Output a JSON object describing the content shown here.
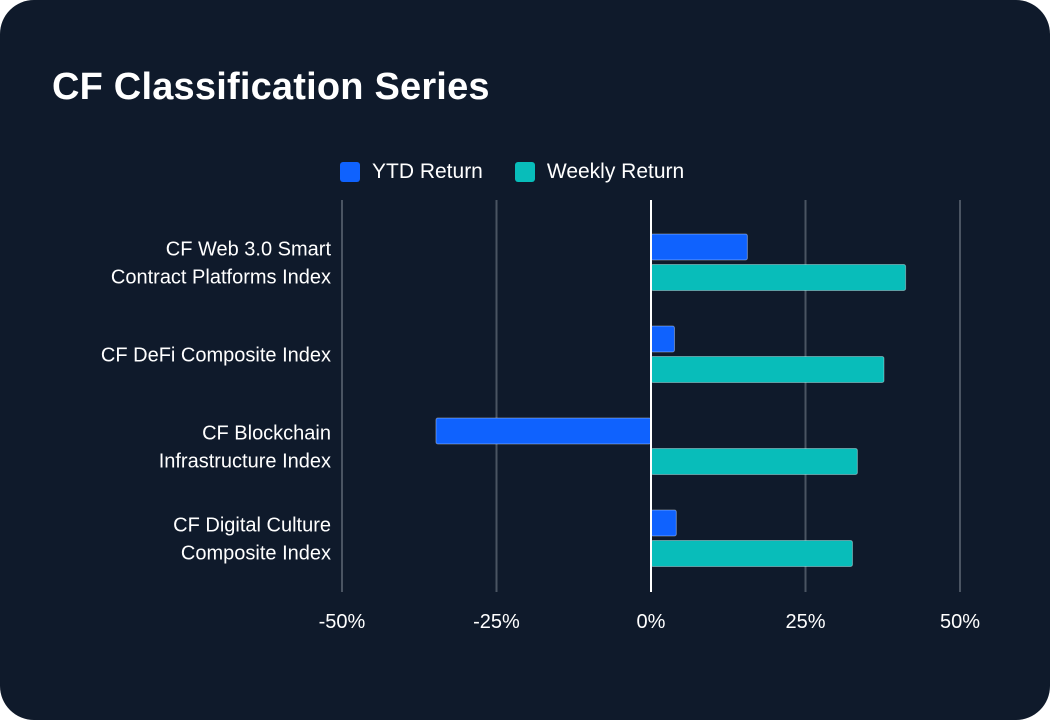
{
  "chart_data": {
    "type": "bar",
    "orientation": "horizontal",
    "title": "CF Classification Series",
    "categories": [
      [
        "CF Web 3.0 Smart",
        "Contract Platforms Index"
      ],
      [
        "CF DeFi Composite Index"
      ],
      [
        "CF Blockchain",
        "Infrastructure Index"
      ],
      [
        "CF Digital Culture",
        "Composite Index"
      ]
    ],
    "series": [
      {
        "name": "YTD Return",
        "color": "#0f62fe",
        "values": [
          15.6,
          3.8,
          -34.8,
          4.1
        ]
      },
      {
        "name": "Weekly Return",
        "color": "#08bdba",
        "values": [
          41.2,
          37.7,
          33.4,
          32.6
        ]
      }
    ],
    "xlim": [
      -50,
      50
    ],
    "ticks": [
      -50,
      -25,
      0,
      25,
      50
    ],
    "tick_labels": [
      "-50%",
      "-25%",
      "0%",
      "25%",
      "50%"
    ],
    "xlabel": "",
    "ylabel": "",
    "grid": true,
    "legend": "top-center"
  }
}
